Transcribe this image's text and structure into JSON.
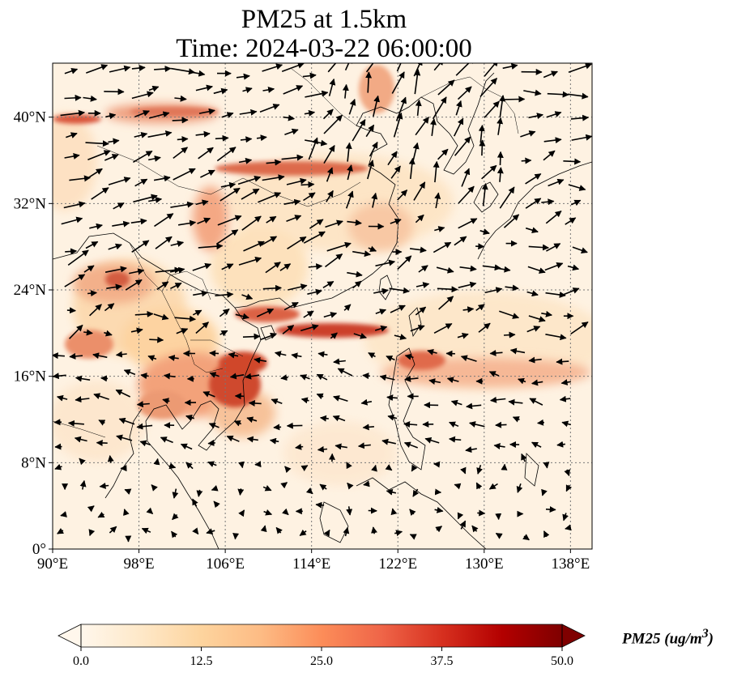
{
  "title": {
    "line1": "PM25 at 1.5km",
    "line2": "Time: 2024-03-22 06:00:00"
  },
  "axes": {
    "lon_ticks": [
      "90°E",
      "98°E",
      "106°E",
      "114°E",
      "122°E",
      "130°E",
      "138°E"
    ],
    "lat_ticks": [
      "0°",
      "8°N",
      "16°N",
      "24°N",
      "32°N",
      "40°N"
    ],
    "gridlines": true,
    "extent": {
      "lon": [
        90,
        140
      ],
      "lat": [
        0,
        45
      ]
    }
  },
  "colorbar": {
    "label_text": "PM25 (ug/m",
    "label_sup": "3",
    "label_close": ")",
    "ticks": [
      "0.0",
      "12.5",
      "25.0",
      "37.5",
      "50.0"
    ],
    "range": [
      0,
      50
    ],
    "colormap": "OrRd",
    "extend": "both",
    "colors": [
      "#fff7ec",
      "#fee8c8",
      "#fdd49e",
      "#fdbb84",
      "#fc8d59",
      "#ef6548",
      "#d7301f",
      "#b30000",
      "#7f0000"
    ]
  },
  "map_colors": {
    "land_outline": "#000000",
    "gridline": "#777777",
    "arrow": "#000000"
  }
}
